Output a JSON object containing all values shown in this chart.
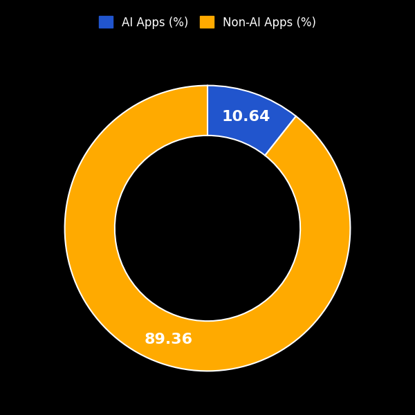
{
  "labels": [
    "AI Apps (%)",
    "Non-AI Apps (%)"
  ],
  "values": [
    10.64,
    89.36
  ],
  "colors": [
    "#2155cd",
    "#ffaa00"
  ],
  "text_labels": [
    "10.64",
    "89.36"
  ],
  "text_color": "white",
  "background_color": "#000000",
  "wedge_edge_color": "white",
  "wedge_edge_width": 1.5,
  "donut_width": 0.35,
  "text_fontsize": 16,
  "legend_fontsize": 12,
  "figsize": [
    6.0,
    6.0
  ],
  "dpi": 100
}
